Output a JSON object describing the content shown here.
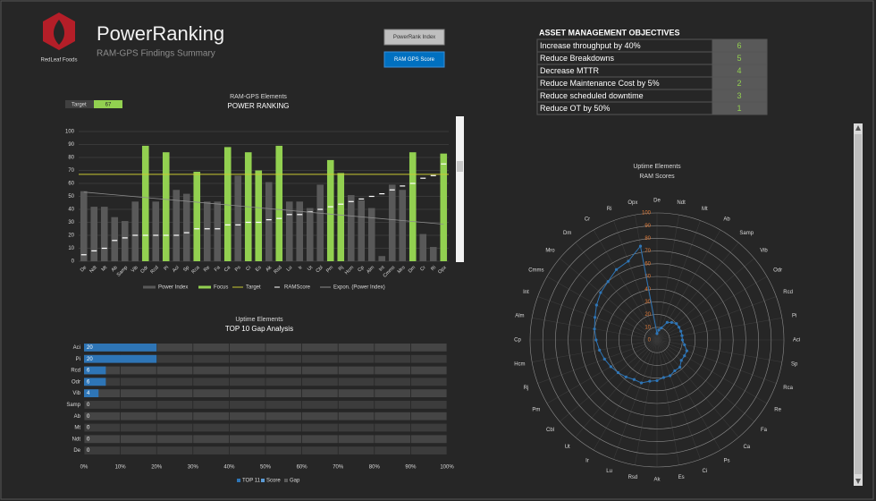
{
  "header": {
    "logo_text": "RedLeaf Foods",
    "title": "PowerRanking",
    "subtitle": "RAM-GPS Findings Summary"
  },
  "buttons": [
    "PowerRank Index",
    "RAM GPS Score"
  ],
  "objectives": {
    "title": "ASSET MANAGEMENT OBJECTIVES",
    "rows": [
      {
        "text": "Increase throughput by 40%",
        "value": 6
      },
      {
        "text": "Reduce Breakdowns",
        "value": 5
      },
      {
        "text": "Decrease MTTR",
        "value": 4
      },
      {
        "text": "Reduce Maintenance Cost by 5%",
        "value": 2
      },
      {
        "text": "Reduce scheduled downtime",
        "value": 3
      },
      {
        "text": "Reduce OT by 50%",
        "value": 1
      }
    ]
  },
  "chart_data": [
    {
      "type": "bar",
      "title": "RAM-GPS Elements",
      "subtitle": "POWER RANKING",
      "categories": [
        "De",
        "Ndt",
        "Mt",
        "Ab",
        "Samp",
        "Vib",
        "Odr",
        "Rcd",
        "Pi",
        "Aci",
        "Sp",
        "Rca",
        "Re",
        "Fa",
        "Ca",
        "Ps",
        "Ci",
        "Es",
        "Ak",
        "Rsd",
        "Lu",
        "Ir",
        "Ut",
        "Cbl",
        "Pm",
        "Rj",
        "Hcm",
        "Cp",
        "Alm",
        "Int",
        "Cmms",
        "Mro",
        "Dm",
        "Cr",
        "Ri",
        "Opx"
      ],
      "series": [
        {
          "name": "Power Index",
          "color": "#595959",
          "values": [
            54,
            42,
            42,
            34,
            31,
            46,
            null,
            46,
            null,
            55,
            52,
            null,
            46,
            46,
            null,
            66,
            null,
            null,
            61,
            null,
            46,
            46,
            41,
            59,
            null,
            null,
            51,
            47,
            41,
            4,
            59,
            55,
            null,
            21,
            11,
            null
          ]
        },
        {
          "name": "Focus",
          "color": "#92d050",
          "values": [
            null,
            null,
            null,
            null,
            null,
            null,
            89,
            null,
            84,
            null,
            null,
            69,
            null,
            null,
            88,
            null,
            84,
            70,
            null,
            89,
            null,
            null,
            null,
            null,
            78,
            68,
            null,
            null,
            null,
            null,
            null,
            null,
            84,
            null,
            null,
            83
          ]
        },
        {
          "name": "RAMScore",
          "color": "#ffffff",
          "values": [
            5,
            8,
            10,
            16,
            18,
            20,
            20,
            20,
            20,
            20,
            22,
            25,
            25,
            25,
            28,
            28,
            30,
            30,
            32,
            33,
            36,
            36,
            38,
            40,
            42,
            44,
            46,
            48,
            50,
            52,
            55,
            58,
            60,
            64,
            66,
            75
          ]
        }
      ],
      "target": {
        "name": "Target",
        "value": 67,
        "color": "#c8c832"
      },
      "trendline": {
        "name": "Expon. (Power Index)",
        "color": "#8c8c8c"
      },
      "ylim": [
        0,
        100
      ],
      "yticks": [
        0,
        10,
        20,
        30,
        40,
        50,
        60,
        70,
        80,
        90,
        100
      ],
      "grid": true
    },
    {
      "type": "radar",
      "title": "Uptime Elements",
      "subtitle": "RAM Scores",
      "categories": [
        "De",
        "Ndt",
        "Mt",
        "Ab",
        "Samp",
        "Vib",
        "Odr",
        "Rcd",
        "Pi",
        "Aci",
        "Sp",
        "Rca",
        "Re",
        "Fa",
        "Ca",
        "Ps",
        "Ci",
        "Es",
        "Ak",
        "Rsd",
        "Lu",
        "Ir",
        "Ut",
        "Cbl",
        "Pm",
        "Rj",
        "Hcm",
        "Cp",
        "Alm",
        "Int",
        "Cmms",
        "Mro",
        "Dm",
        "Cr",
        "Ri",
        "Opx"
      ],
      "values": [
        5,
        8,
        10,
        16,
        18,
        20,
        20,
        20,
        20,
        20,
        22,
        25,
        25,
        25,
        28,
        28,
        30,
        30,
        32,
        33,
        36,
        36,
        38,
        40,
        42,
        44,
        46,
        48,
        50,
        52,
        55,
        58,
        60,
        64,
        66,
        75
      ],
      "color": "#2e75b6",
      "tick_color": "#e07b39",
      "rlim": [
        0,
        100
      ],
      "rticks": [
        0,
        10,
        20,
        30,
        40,
        50,
        60,
        70,
        80,
        90,
        100
      ]
    },
    {
      "type": "hbar",
      "title": "Uptime Elements",
      "subtitle": "TOP 10 Gap Analysis",
      "categories": [
        "Aci",
        "Pi",
        "Rcd",
        "Odr",
        "Vib",
        "Samp",
        "Ab",
        "Mt",
        "Ndt",
        "De"
      ],
      "series": [
        {
          "name": "TOP 11",
          "color": "#2e75b6",
          "values": [
            20,
            20,
            6,
            6,
            4,
            0,
            0,
            0,
            0,
            0
          ]
        },
        {
          "name": "Score",
          "color": "#5b9bd5"
        },
        {
          "name": "Gap",
          "color": "#595959"
        }
      ],
      "xlim": [
        0,
        100
      ],
      "xticks": [
        {
          "value": 0,
          "label": "0%"
        },
        {
          "value": 10,
          "label": "10%"
        },
        {
          "value": 20,
          "label": "20%"
        },
        {
          "value": 30,
          "label": "30%"
        },
        {
          "value": 40,
          "label": "40%"
        },
        {
          "value": 50,
          "label": "50%"
        },
        {
          "value": 60,
          "label": "60%"
        },
        {
          "value": 70,
          "label": "70%"
        },
        {
          "value": 80,
          "label": "80%"
        },
        {
          "value": 90,
          "label": "90%"
        },
        {
          "value": 100,
          "label": "100%"
        }
      ],
      "grid": true
    }
  ]
}
